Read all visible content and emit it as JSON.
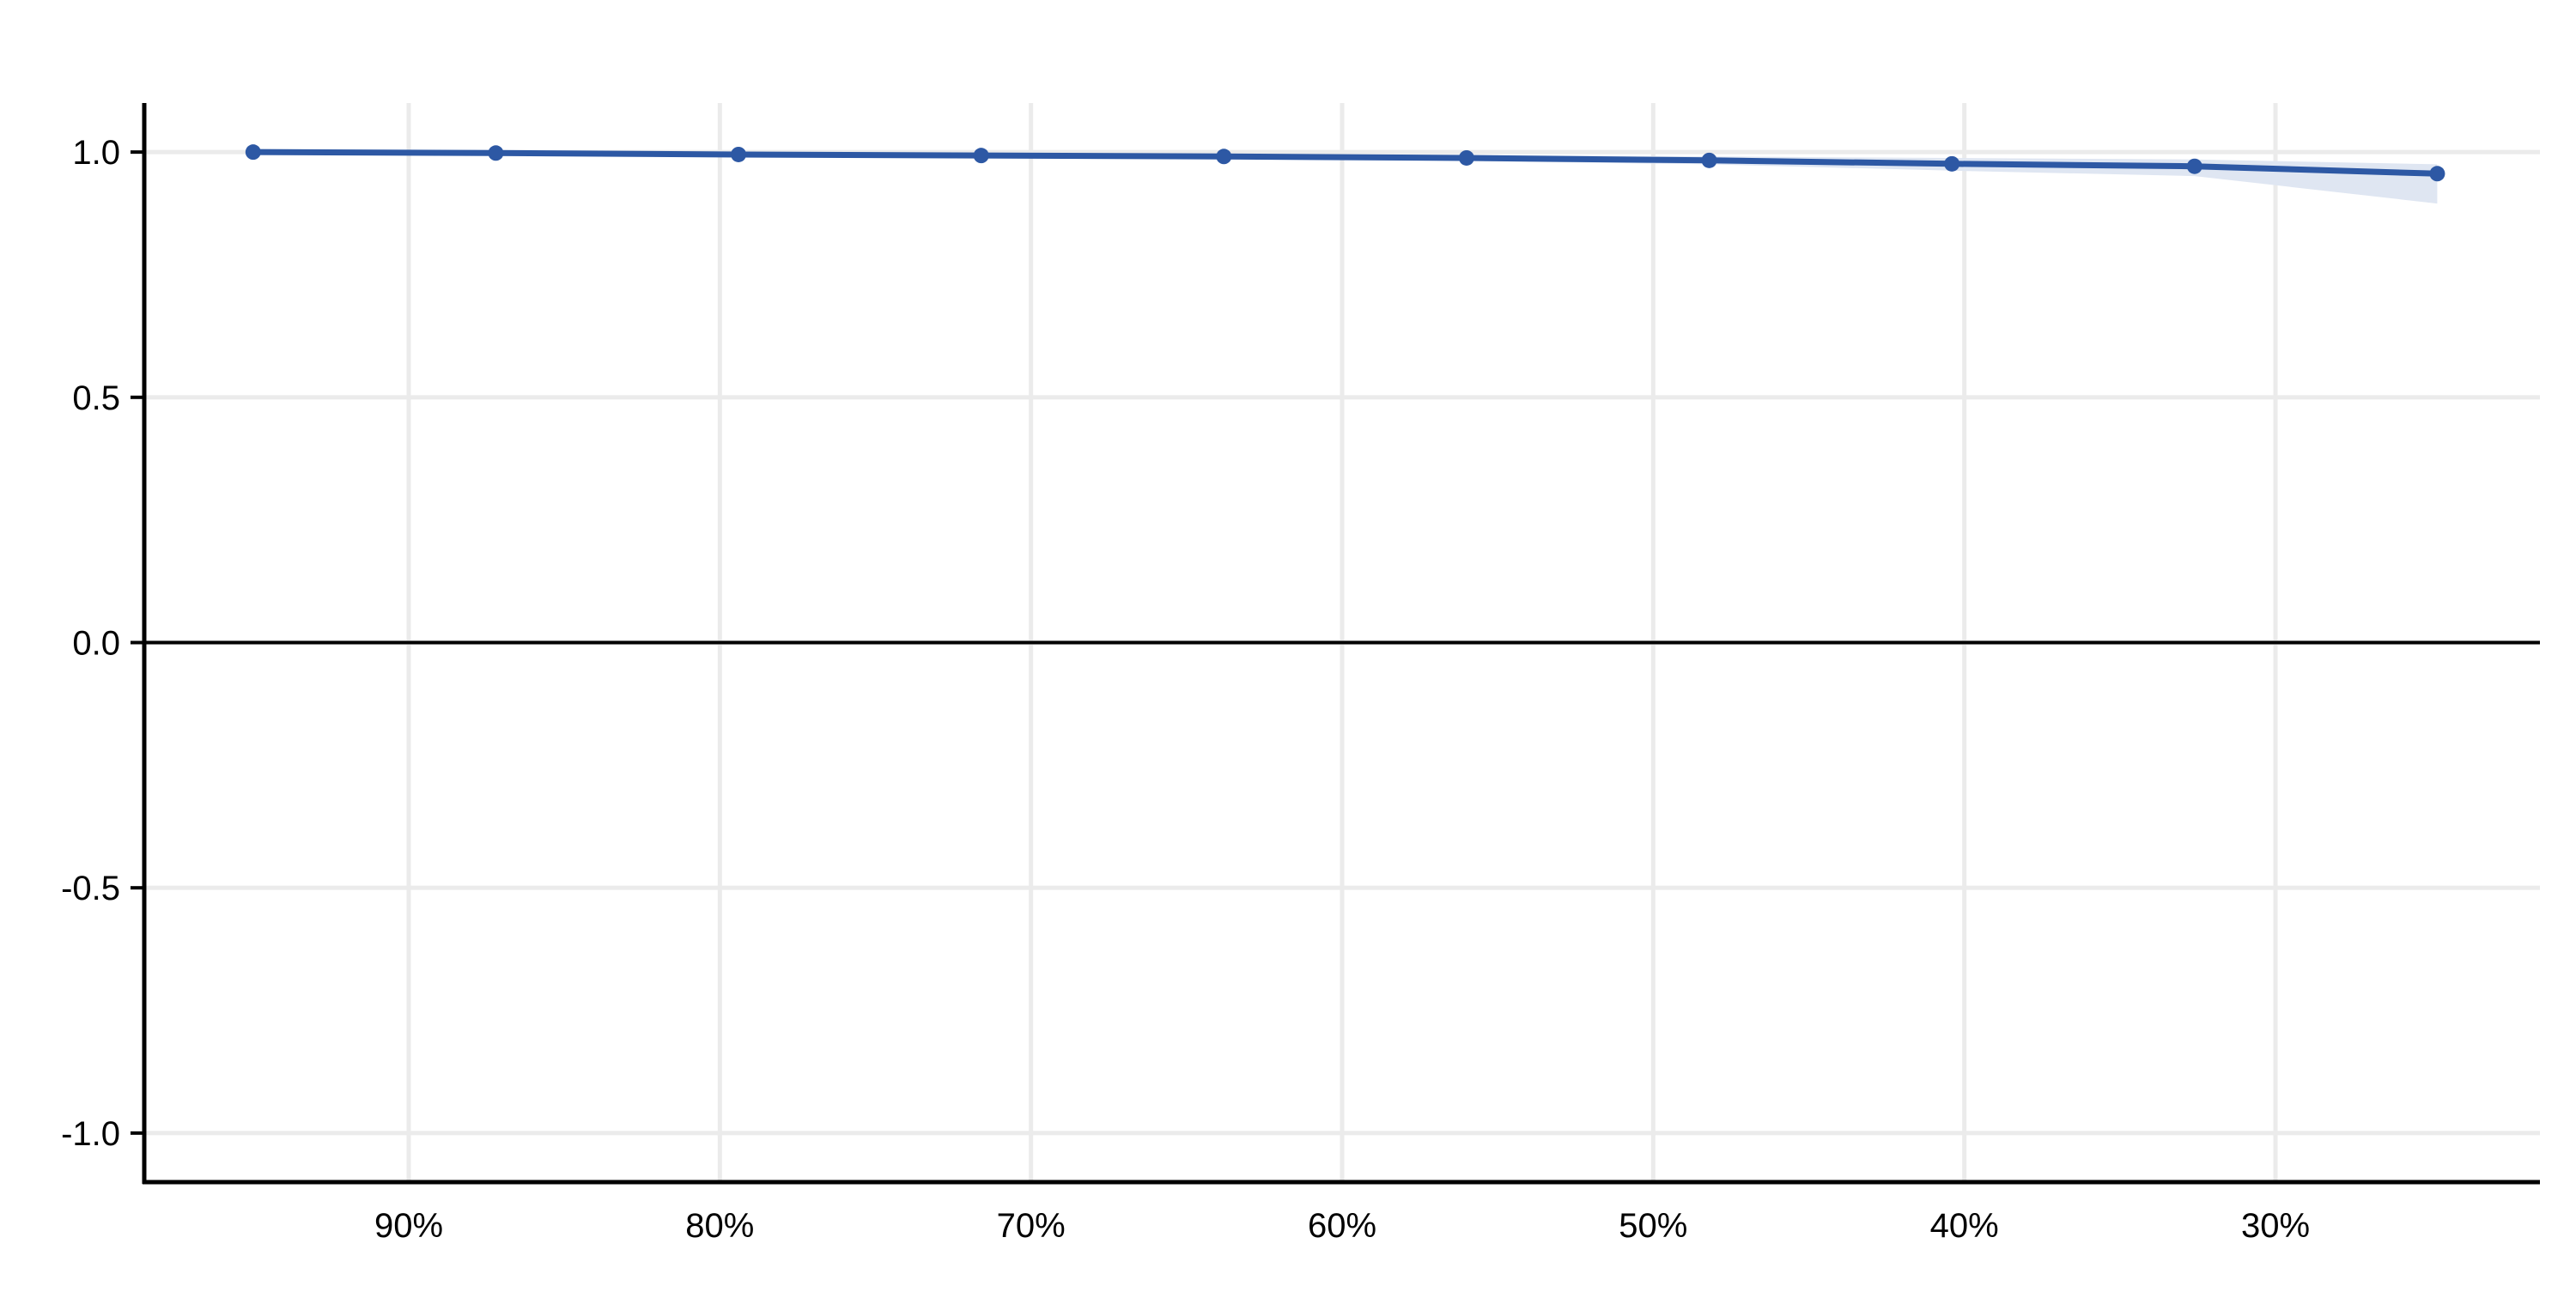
{
  "chart_data": {
    "type": "line",
    "title": "",
    "xlabel": "",
    "ylabel": "",
    "x_axis": {
      "reversed": true,
      "range": [
        98.5,
        21.5
      ],
      "ticks": [
        90,
        80,
        70,
        60,
        50,
        40,
        30
      ],
      "tick_labels": [
        "90%",
        "80%",
        "70%",
        "60%",
        "50%",
        "40%",
        "30%"
      ]
    },
    "y_axis": {
      "range": [
        -1.1,
        1.1
      ],
      "ticks": [
        1.0,
        0.5,
        0.0,
        -0.5,
        -1.0
      ],
      "tick_labels": [
        "1.0",
        "0.5",
        "0.0",
        "-0.5",
        "-1.0"
      ]
    },
    "grid": true,
    "reference_line_y": 0.0,
    "series": [
      {
        "x": [
          95,
          87.2,
          79.4,
          71.6,
          63.8,
          56,
          48.2,
          40.4,
          32.6,
          24.8
        ],
        "y": [
          1.0,
          0.998,
          0.995,
          0.993,
          0.991,
          0.988,
          0.983,
          0.976,
          0.971,
          0.956
        ],
        "ci_lower": [
          1.0,
          0.997,
          0.993,
          0.99,
          0.987,
          0.982,
          0.975,
          0.962,
          0.951,
          0.895
        ],
        "ci_upper": [
          1.0,
          0.999,
          0.997,
          0.996,
          0.995,
          0.994,
          0.991,
          0.988,
          0.985,
          0.975
        ],
        "color": "#2d58a4",
        "ci_color": "#dfe6f2"
      }
    ]
  }
}
